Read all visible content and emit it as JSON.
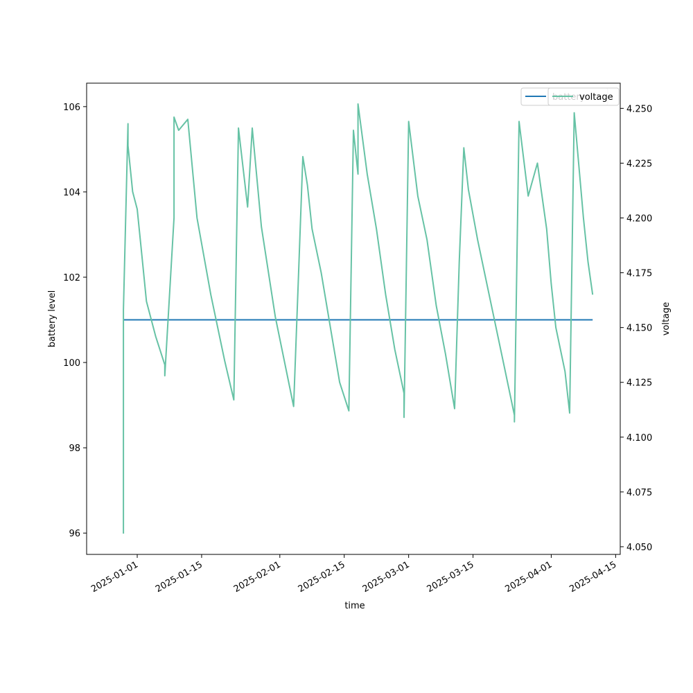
{
  "chart_data": {
    "type": "line",
    "xlabel": "time",
    "ylabel_left": "battery level",
    "ylabel_right": "voltage",
    "x_range": [
      "2024-12-21",
      "2025-04-16"
    ],
    "x_ticks": [
      "2025-01-01",
      "2025-01-15",
      "2025-02-01",
      "2025-02-15",
      "2025-03-01",
      "2025-03-15",
      "2025-04-01",
      "2025-04-15"
    ],
    "y_left_range": [
      95.5,
      106.55
    ],
    "y_left_ticks": [
      96,
      98,
      100,
      102,
      104,
      106
    ],
    "y_right_range": [
      4.0465,
      4.2615
    ],
    "y_right_ticks": [
      "4.050",
      "4.075",
      "4.100",
      "4.125",
      "4.150",
      "4.175",
      "4.200",
      "4.225",
      "4.250"
    ],
    "legend_placement": "top-right",
    "series": [
      {
        "name": "battery",
        "axis": "left",
        "color": "#1f77b4",
        "points": [
          [
            "2024-12-29",
            101.0
          ],
          [
            "2025-04-10",
            101.0
          ]
        ]
      },
      {
        "name": "voltage",
        "axis": "right",
        "color": "#66c2a5",
        "points": [
          [
            "2024-12-29",
            4.056
          ],
          [
            "2024-12-29",
            4.158
          ],
          [
            "2024-12-30",
            4.243
          ],
          [
            "2024-12-30",
            4.233
          ],
          [
            "2024-12-31",
            4.212
          ],
          [
            "2025-01-01",
            4.204
          ],
          [
            "2025-01-02",
            4.183
          ],
          [
            "2025-01-03",
            4.162
          ],
          [
            "2025-01-05",
            4.146
          ],
          [
            "2025-01-07",
            4.133
          ],
          [
            "2025-01-07",
            4.128
          ],
          [
            "2025-01-09",
            4.2
          ],
          [
            "2025-01-09",
            4.246
          ],
          [
            "2025-01-10",
            4.24
          ],
          [
            "2025-01-12",
            4.245
          ],
          [
            "2025-01-14",
            4.2
          ],
          [
            "2025-01-17",
            4.165
          ],
          [
            "2025-01-20",
            4.135
          ],
          [
            "2025-01-22",
            4.117
          ],
          [
            "2025-01-23",
            4.241
          ],
          [
            "2025-01-25",
            4.205
          ],
          [
            "2025-01-26",
            4.241
          ],
          [
            "2025-01-28",
            4.196
          ],
          [
            "2025-01-31",
            4.155
          ],
          [
            "2025-02-04",
            4.114
          ],
          [
            "2025-02-05",
            4.17
          ],
          [
            "2025-02-06",
            4.228
          ],
          [
            "2025-02-07",
            4.215
          ],
          [
            "2025-02-08",
            4.195
          ],
          [
            "2025-02-10",
            4.175
          ],
          [
            "2025-02-12",
            4.15
          ],
          [
            "2025-02-14",
            4.125
          ],
          [
            "2025-02-16",
            4.112
          ],
          [
            "2025-02-17",
            4.24
          ],
          [
            "2025-02-18",
            4.22
          ],
          [
            "2025-02-18",
            4.252
          ],
          [
            "2025-02-20",
            4.22
          ],
          [
            "2025-02-22",
            4.195
          ],
          [
            "2025-02-24",
            4.165
          ],
          [
            "2025-02-26",
            4.14
          ],
          [
            "2025-02-28",
            4.12
          ],
          [
            "2025-02-28",
            4.109
          ],
          [
            "2025-03-01",
            4.244
          ],
          [
            "2025-03-03",
            4.21
          ],
          [
            "2025-03-05",
            4.19
          ],
          [
            "2025-03-07",
            4.16
          ],
          [
            "2025-03-09",
            4.138
          ],
          [
            "2025-03-11",
            4.113
          ],
          [
            "2025-03-12",
            4.18
          ],
          [
            "2025-03-13",
            4.232
          ],
          [
            "2025-03-14",
            4.213
          ],
          [
            "2025-03-16",
            4.19
          ],
          [
            "2025-03-18",
            4.17
          ],
          [
            "2025-03-20",
            4.15
          ],
          [
            "2025-03-22",
            4.13
          ],
          [
            "2025-03-24",
            4.11
          ],
          [
            "2025-03-24",
            4.107
          ],
          [
            "2025-03-25",
            4.244
          ],
          [
            "2025-03-27",
            4.21
          ],
          [
            "2025-03-29",
            4.225
          ],
          [
            "2025-03-31",
            4.195
          ],
          [
            "2025-04-01",
            4.17
          ],
          [
            "2025-04-02",
            4.15
          ],
          [
            "2025-04-04",
            4.13
          ],
          [
            "2025-04-05",
            4.111
          ],
          [
            "2025-04-06",
            4.248
          ],
          [
            "2025-04-08",
            4.2
          ],
          [
            "2025-04-09",
            4.18
          ],
          [
            "2025-04-10",
            4.165
          ]
        ]
      }
    ]
  }
}
